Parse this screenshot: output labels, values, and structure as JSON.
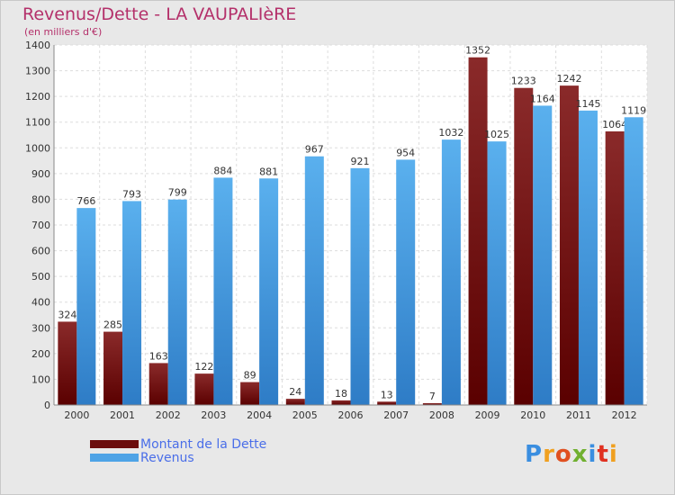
{
  "header": {
    "title": "Revenus/Dette - LA VAUPALIèRE",
    "subtitle": "(en milliers d'€)"
  },
  "colors": {
    "debt": "#7a1a1a",
    "revenue": "#4ea3e6",
    "title": "#b4306a",
    "legend_text": "#4a6ee8"
  },
  "legend": {
    "items": [
      {
        "label": "Montant de la Dette",
        "color": "#6b0d0d"
      },
      {
        "label": "Revenus",
        "color": "#4ea3e6"
      }
    ]
  },
  "logo": {
    "text": "Proxiti",
    "letter_colors": [
      "#3a8ee0",
      "#f0a020",
      "#e05020",
      "#70b030",
      "#3a8ee0",
      "#e03020",
      "#f0a020"
    ]
  },
  "chart_data": {
    "type": "bar",
    "categories": [
      "2000",
      "2001",
      "2002",
      "2003",
      "2004",
      "2005",
      "2006",
      "2007",
      "2008",
      "2009",
      "2010",
      "2011",
      "2012"
    ],
    "series": [
      {
        "name": "Montant de la Dette",
        "values": [
          324,
          285,
          163,
          122,
          89,
          24,
          18,
          13,
          7,
          1352,
          1233,
          1242,
          1064
        ]
      },
      {
        "name": "Revenus",
        "values": [
          766,
          793,
          799,
          884,
          881,
          967,
          921,
          954,
          1032,
          1025,
          1164,
          1145,
          1119
        ]
      }
    ],
    "yticks": [
      0,
      100,
      200,
      300,
      400,
      500,
      600,
      700,
      800,
      900,
      1000,
      1100,
      1200,
      1300,
      1400
    ],
    "ylim": [
      0,
      1400
    ],
    "grid": true,
    "legend_position": "bottom-left"
  }
}
